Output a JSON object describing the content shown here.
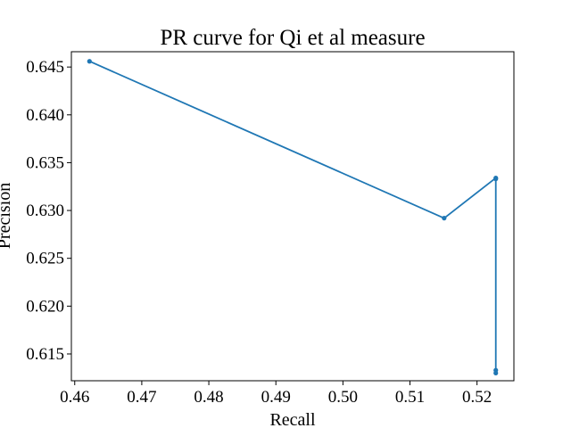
{
  "chart_data": {
    "type": "line",
    "title": "PR curve for Qi et al measure",
    "xlabel": "Recall",
    "ylabel": "Precision",
    "xlim": [
      0.4595,
      0.5255
    ],
    "ylim": [
      0.6122,
      0.6466
    ],
    "xticks": [
      0.46,
      0.47,
      0.48,
      0.49,
      0.5,
      0.51,
      0.52
    ],
    "xtick_labels": [
      "0.46",
      "0.47",
      "0.48",
      "0.49",
      "0.50",
      "0.51",
      "0.52"
    ],
    "yticks": [
      0.615,
      0.62,
      0.625,
      0.63,
      0.635,
      0.64,
      0.645
    ],
    "ytick_labels": [
      "0.615",
      "0.620",
      "0.625",
      "0.630",
      "0.635",
      "0.640",
      "0.645"
    ],
    "grid": false,
    "series": [
      {
        "color": "#1f77b4",
        "marker": "circle",
        "x": [
          0.4622,
          0.5151,
          0.5228,
          0.5228,
          0.5228,
          0.5228
        ],
        "y": [
          0.6456,
          0.6292,
          0.6334,
          0.6333,
          0.6133,
          0.613
        ]
      }
    ]
  }
}
